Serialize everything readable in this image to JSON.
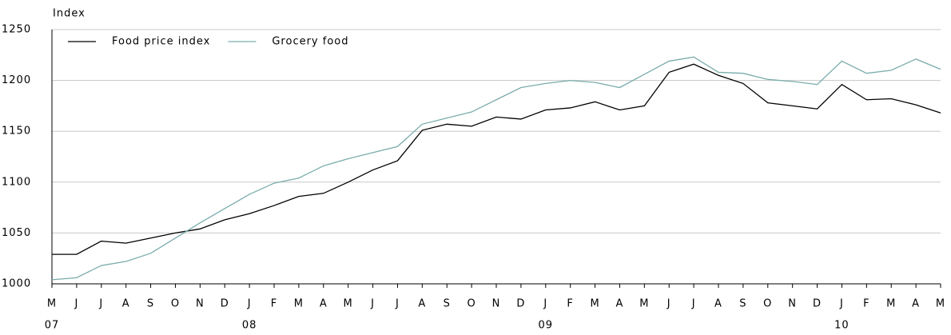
{
  "chart_data": {
    "type": "line",
    "y_label": "Index",
    "categories": [
      "M",
      "J",
      "J",
      "A",
      "S",
      "O",
      "N",
      "D",
      "J",
      "F",
      "M",
      "A",
      "M",
      "J",
      "J",
      "A",
      "S",
      "O",
      "N",
      "D",
      "J",
      "F",
      "M",
      "A",
      "M",
      "J",
      "J",
      "A",
      "S",
      "O",
      "N",
      "D",
      "J",
      "F",
      "M",
      "A",
      "M"
    ],
    "year_labels": [
      "07",
      null,
      null,
      null,
      null,
      null,
      null,
      null,
      "08",
      null,
      null,
      null,
      null,
      null,
      null,
      null,
      null,
      null,
      null,
      null,
      "09",
      null,
      null,
      null,
      null,
      null,
      null,
      null,
      null,
      null,
      null,
      null,
      "10",
      null,
      null,
      null,
      null
    ],
    "series": [
      {
        "name": "Food price index",
        "color": "#000000",
        "values": [
          1029,
          1029,
          1042,
          1040,
          1045,
          1050,
          1054,
          1063,
          1069,
          1077,
          1086,
          1089,
          1100,
          1112,
          1121,
          1151,
          1157,
          1155,
          1164,
          1162,
          1171,
          1173,
          1179,
          1171,
          1175,
          1208,
          1216,
          1205,
          1197,
          1178,
          1175,
          1172,
          1196,
          1181,
          1182,
          1176,
          1168
        ]
      },
      {
        "name": "Grocery food",
        "color": "#7aacac",
        "values": [
          1004,
          1006,
          1018,
          1022,
          1030,
          1045,
          1060,
          1074,
          1088,
          1099,
          1104,
          1116,
          1123,
          1129,
          1135,
          1157,
          1163,
          1169,
          1181,
          1193,
          1197,
          1200,
          1198,
          1193,
          1206,
          1219,
          1223,
          1208,
          1207,
          1201,
          1199,
          1196,
          1219,
          1207,
          1210,
          1221,
          1211
        ]
      }
    ],
    "ylim": [
      1000,
      1250
    ],
    "yticks": [
      1000,
      1050,
      1100,
      1150,
      1200,
      1250
    ],
    "grid": true,
    "legend": "top-left"
  }
}
